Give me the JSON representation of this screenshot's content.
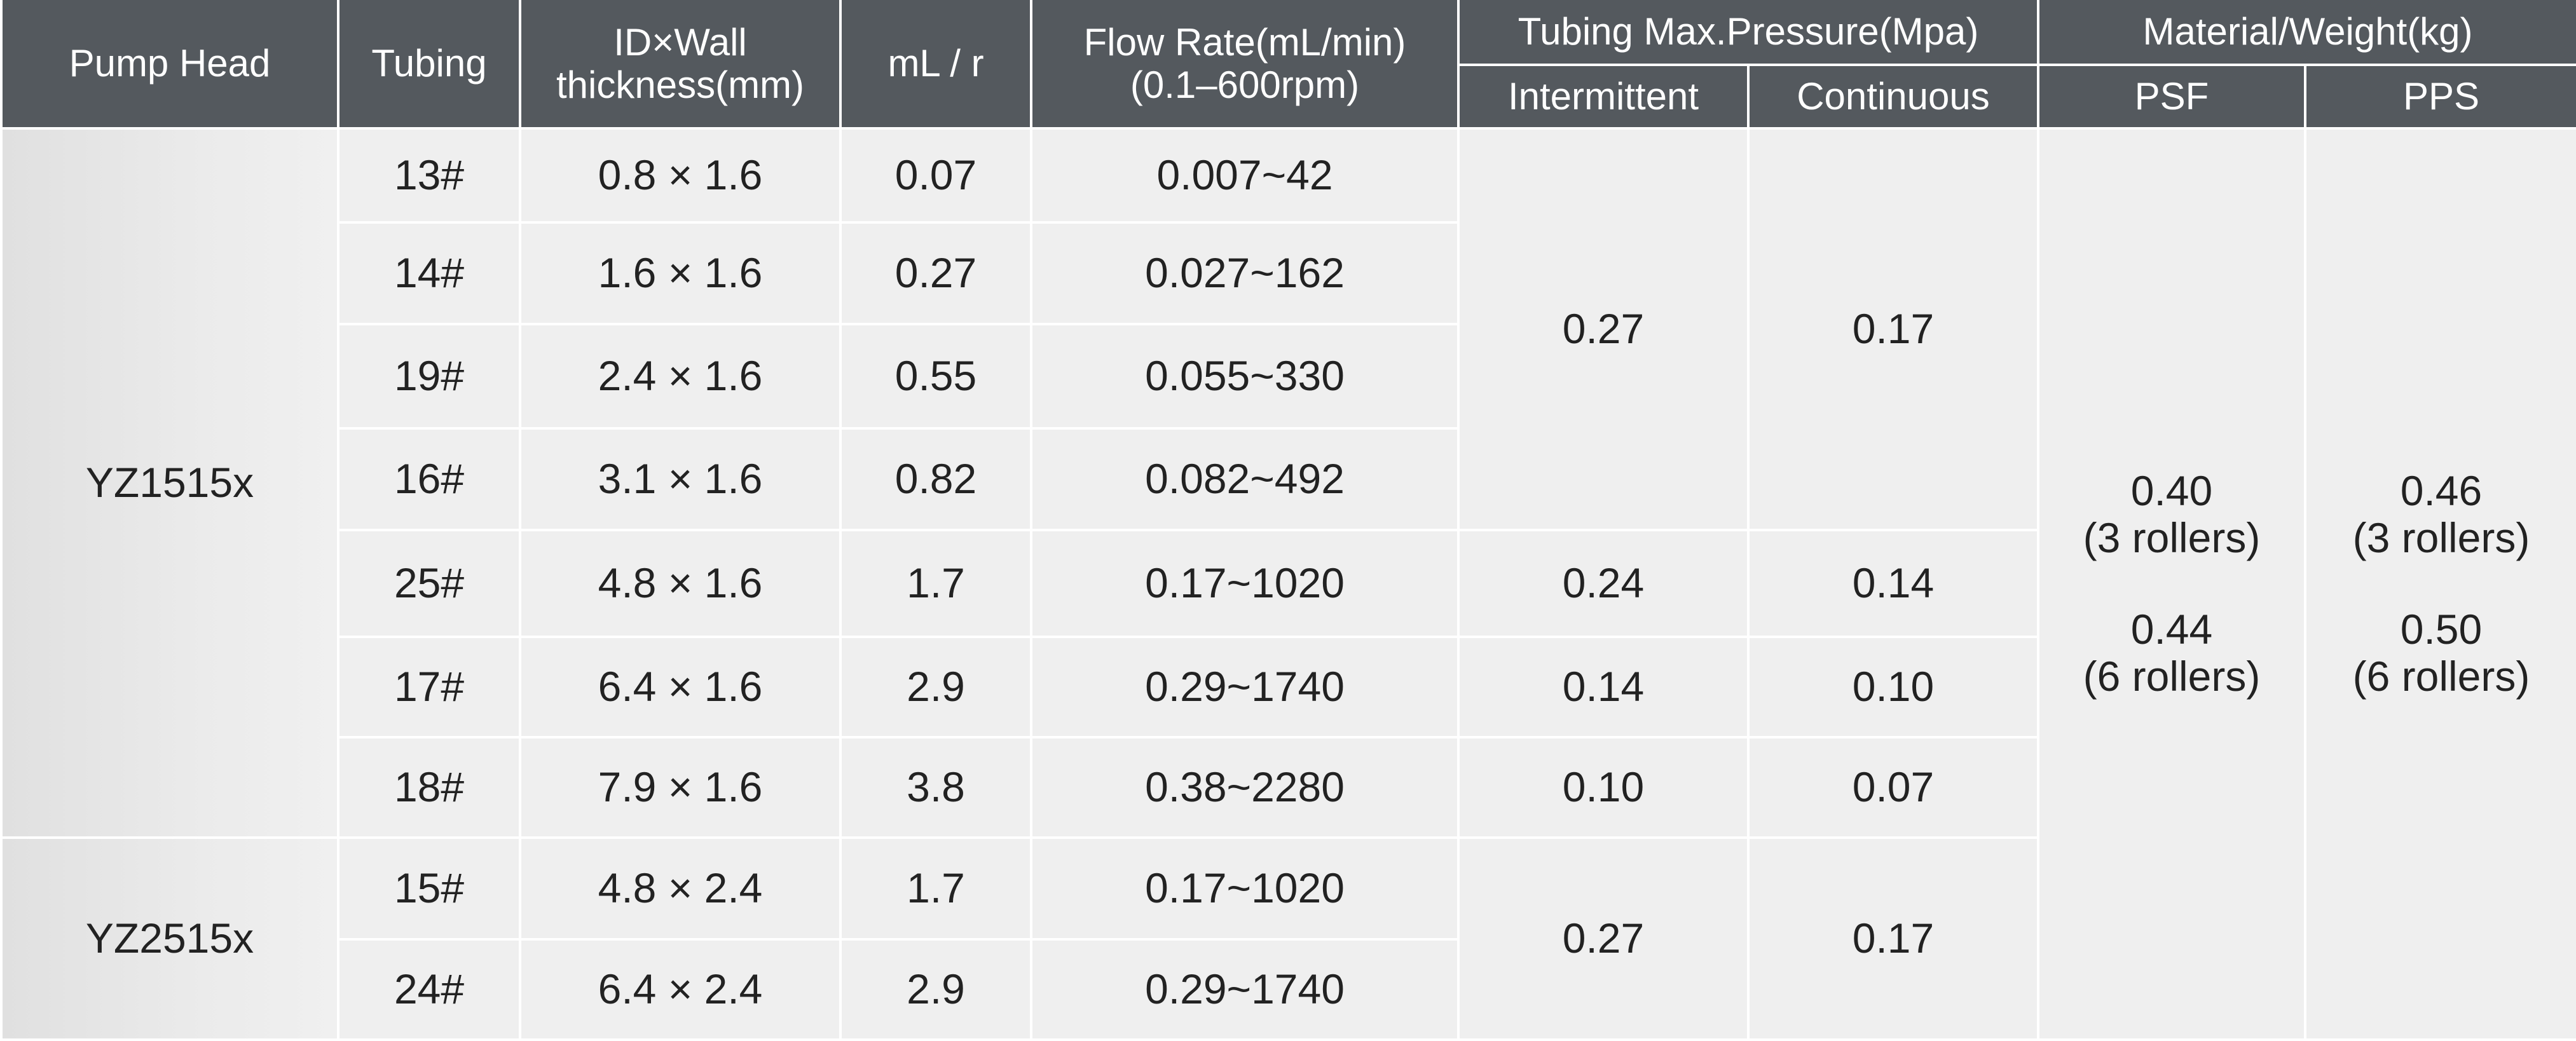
{
  "header": {
    "pump_head": "Pump Head",
    "tubing": "Tubing",
    "id_wall_line1": "ID×Wall",
    "id_wall_line2": "thickness(mm)",
    "ml_r": "mL / r",
    "flow_line1": "Flow Rate(mL/min)",
    "flow_line2": "(0.1–600rpm)",
    "pressure_group": "Tubing Max.Pressure(Mpa)",
    "intermittent": "Intermittent",
    "continuous": "Continuous",
    "material_group": "Material/Weight(kg)",
    "psf": "PSF",
    "pps": "PPS"
  },
  "pump_heads": [
    "YZ1515x",
    "YZ2515x"
  ],
  "rows": [
    {
      "tubing": "13#",
      "id_wall": "0.8 × 1.6",
      "ml_r": "0.07",
      "flow": "0.007~42"
    },
    {
      "tubing": "14#",
      "id_wall": "1.6 × 1.6",
      "ml_r": "0.27",
      "flow": "0.027~162"
    },
    {
      "tubing": "19#",
      "id_wall": "2.4 × 1.6",
      "ml_r": "0.55",
      "flow": "0.055~330"
    },
    {
      "tubing": "16#",
      "id_wall": "3.1 × 1.6",
      "ml_r": "0.82",
      "flow": "0.082~492"
    },
    {
      "tubing": "25#",
      "id_wall": "4.8 × 1.6",
      "ml_r": "1.7",
      "flow": "0.17~1020"
    },
    {
      "tubing": "17#",
      "id_wall": "6.4 × 1.6",
      "ml_r": "2.9",
      "flow": "0.29~1740"
    },
    {
      "tubing": "18#",
      "id_wall": "7.9 × 1.6",
      "ml_r": "3.8",
      "flow": "0.38~2280"
    },
    {
      "tubing": "15#",
      "id_wall": "4.8 × 2.4",
      "ml_r": "1.7",
      "flow": "0.17~1020"
    },
    {
      "tubing": "24#",
      "id_wall": "6.4 × 2.4",
      "ml_r": "2.9",
      "flow": "0.29~1740"
    }
  ],
  "pressure": {
    "group_a": {
      "intermittent": "0.27",
      "continuous": "0.17"
    },
    "row_25": {
      "intermittent": "0.24",
      "continuous": "0.14"
    },
    "row_17": {
      "intermittent": "0.14",
      "continuous": "0.10"
    },
    "row_18": {
      "intermittent": "0.10",
      "continuous": "0.07"
    },
    "group_b": {
      "intermittent": "0.27",
      "continuous": "0.17"
    }
  },
  "weights": {
    "psf": {
      "w3": "0.40",
      "l3": "(3 rollers)",
      "w6": "0.44",
      "l6": "(6 rollers)"
    },
    "pps": {
      "w3": "0.46",
      "l3": "(3 rollers)",
      "w6": "0.50",
      "l6": "(6 rollers)"
    }
  }
}
